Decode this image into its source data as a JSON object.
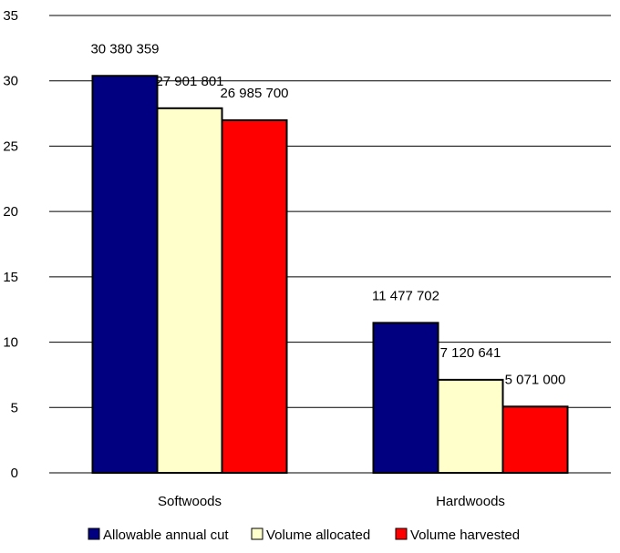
{
  "chart_data": {
    "type": "bar",
    "categories": [
      "Softwoods",
      "Hardwoods"
    ],
    "series": [
      {
        "name": "Allowable annual cut",
        "color": "#000080",
        "values": [
          30.380359,
          11.477702
        ],
        "labels": [
          "30 380 359",
          "11 477 702"
        ]
      },
      {
        "name": "Volume allocated",
        "color": "#FFFFCC",
        "values": [
          27.901801,
          7.120641
        ],
        "labels": [
          "27 901 801",
          "7 120 641"
        ]
      },
      {
        "name": "Volume harvested",
        "color": "#FF0000",
        "values": [
          26.9857,
          5.071
        ],
        "labels": [
          "26 985 700",
          "5 071 000"
        ]
      }
    ],
    "ylim": [
      0,
      35
    ],
    "yticks": [
      0,
      5,
      10,
      15,
      20,
      25,
      30,
      35
    ],
    "grid": true,
    "legend": "bottom"
  }
}
